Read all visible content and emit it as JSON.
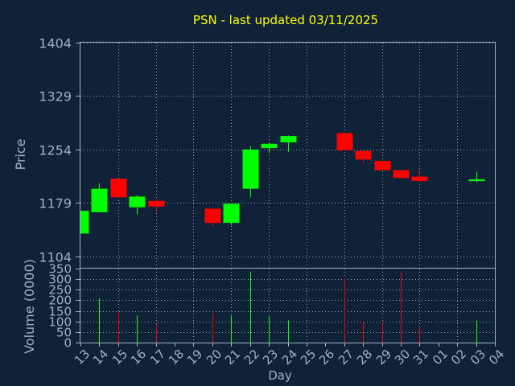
{
  "colors": {
    "background": "#0f2238",
    "panel_border": "#9fb1c8",
    "grid": "#c7d2de",
    "axis_text": "#9fb1c8",
    "title": "#ffff00",
    "up": "#00ff00",
    "down": "#ff0000"
  },
  "chart_data": [
    {
      "type": "candlestick",
      "title": "PSN - last updated 03/11/2025",
      "ylabel": "Price",
      "ylim": [
        1088,
        1404
      ],
      "yticks": [
        "1104",
        "1179",
        "1254",
        "1329",
        "1404"
      ],
      "grid": true,
      "categories": [
        "13",
        "14",
        "15",
        "16",
        "17",
        "18",
        "19",
        "20",
        "21",
        "22",
        "23",
        "24",
        "25",
        "26",
        "27",
        "28",
        "29",
        "30",
        "31",
        "01",
        "02",
        "03",
        "04"
      ],
      "candles": [
        {
          "day": "13",
          "open": 1136,
          "high": 1168,
          "low": 1136,
          "close": 1168,
          "direction": "up"
        },
        {
          "day": "14",
          "open": 1166,
          "high": 1207,
          "low": 1166,
          "close": 1199,
          "direction": "up"
        },
        {
          "day": "15",
          "open": 1213,
          "high": 1213,
          "low": 1186,
          "close": 1187,
          "direction": "down"
        },
        {
          "day": "16",
          "open": 1173,
          "high": 1190,
          "low": 1163,
          "close": 1188,
          "direction": "up"
        },
        {
          "day": "17",
          "open": 1182,
          "high": 1184,
          "low": 1166,
          "close": 1174,
          "direction": "down"
        },
        {
          "day": "20",
          "open": 1171,
          "high": 1171,
          "low": 1146,
          "close": 1151,
          "direction": "down"
        },
        {
          "day": "21",
          "open": 1151,
          "high": 1178,
          "low": 1148,
          "close": 1178,
          "direction": "up"
        },
        {
          "day": "22",
          "open": 1199,
          "high": 1259,
          "low": 1187,
          "close": 1254,
          "direction": "up"
        },
        {
          "day": "23",
          "open": 1256,
          "high": 1263,
          "low": 1249,
          "close": 1262,
          "direction": "up"
        },
        {
          "day": "24",
          "open": 1264,
          "high": 1274,
          "low": 1251,
          "close": 1273,
          "direction": "up"
        },
        {
          "day": "27",
          "open": 1277,
          "high": 1277,
          "low": 1252,
          "close": 1253,
          "direction": "down"
        },
        {
          "day": "28",
          "open": 1252,
          "high": 1252,
          "low": 1235,
          "close": 1240,
          "direction": "down"
        },
        {
          "day": "29",
          "open": 1238,
          "high": 1238,
          "low": 1224,
          "close": 1225,
          "direction": "down"
        },
        {
          "day": "30",
          "open": 1225,
          "high": 1225,
          "low": 1213,
          "close": 1214,
          "direction": "down"
        },
        {
          "day": "31",
          "open": 1216,
          "high": 1226,
          "low": 1208,
          "close": 1210,
          "direction": "down"
        },
        {
          "day": "03",
          "open": 1210,
          "high": 1223,
          "low": 1208,
          "close": 1212,
          "direction": "up"
        }
      ]
    },
    {
      "type": "bar",
      "ylabel": "Volume (0000)",
      "xlabel": "Day",
      "ylim": [
        0,
        350
      ],
      "yticks": [
        "0",
        "50",
        "100",
        "150",
        "200",
        "250",
        "300",
        "350"
      ],
      "grid": true,
      "categories": [
        "13",
        "14",
        "15",
        "16",
        "17",
        "18",
        "19",
        "20",
        "21",
        "22",
        "23",
        "24",
        "25",
        "26",
        "27",
        "28",
        "29",
        "30",
        "31",
        "01",
        "02",
        "03",
        "04"
      ],
      "bars": [
        {
          "day": "14",
          "value": 210,
          "direction": "up"
        },
        {
          "day": "15",
          "value": 140,
          "direction": "down"
        },
        {
          "day": "16",
          "value": 128,
          "direction": "up"
        },
        {
          "day": "17",
          "value": 88,
          "direction": "down"
        },
        {
          "day": "20",
          "value": 140,
          "direction": "down"
        },
        {
          "day": "21",
          "value": 128,
          "direction": "up"
        },
        {
          "day": "22",
          "value": 335,
          "direction": "up"
        },
        {
          "day": "23",
          "value": 125,
          "direction": "up"
        },
        {
          "day": "24",
          "value": 105,
          "direction": "up"
        },
        {
          "day": "27",
          "value": 305,
          "direction": "down"
        },
        {
          "day": "28",
          "value": 98,
          "direction": "down"
        },
        {
          "day": "29",
          "value": 92,
          "direction": "down"
        },
        {
          "day": "30",
          "value": 335,
          "direction": "down"
        },
        {
          "day": "31",
          "value": 72,
          "direction": "down"
        },
        {
          "day": "03",
          "value": 105,
          "direction": "up"
        }
      ]
    }
  ]
}
